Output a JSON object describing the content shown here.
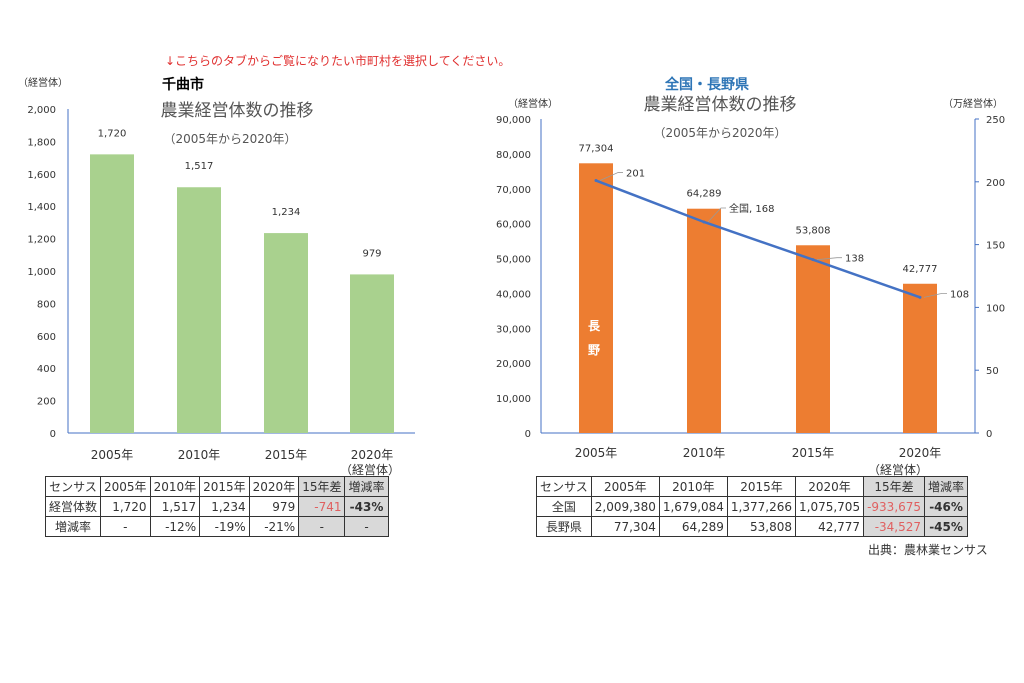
{
  "notice": "↓こちらのタブからご覧になりたい市町村を選択してください。",
  "colors": {
    "green_bar": "#a9d18e",
    "orange_bar": "#ed7d31",
    "line": "#4472c4",
    "notice": "#e03030",
    "title_blue": "#2e75b6"
  },
  "chart_data": [
    {
      "type": "bar",
      "region": "千曲市",
      "title": "農業経営体数の推移",
      "subtitle": "（2005年から2020年）",
      "ylabel": "（経営体）",
      "categories": [
        "2005年",
        "2010年",
        "2015年",
        "2020年"
      ],
      "values": [
        1720,
        1517,
        1234,
        979
      ],
      "data_labels": [
        "1,720",
        "1,517",
        "1,234",
        "979"
      ],
      "ylim": [
        0,
        2000
      ],
      "yticks": [
        "0",
        "200",
        "400",
        "600",
        "800",
        "1,000",
        "1,200",
        "1,400",
        "1,600",
        "1,800",
        "2,000"
      ],
      "grid": false,
      "unit_note": "（経営体）"
    },
    {
      "type": "bar+line",
      "region": "全国・長野県",
      "title": "農業経営体数の推移",
      "subtitle": "（2005年から2020年）",
      "ylabel": "（経営体）",
      "y2label": "（万経営体）",
      "categories": [
        "2005年",
        "2010年",
        "2015年",
        "2020年"
      ],
      "series": [
        {
          "name": "長野",
          "type": "bar",
          "axis": "left",
          "values": [
            77304,
            64289,
            53808,
            42777
          ],
          "data_labels": [
            "77,304",
            "64,289",
            "53,808",
            "42,777"
          ]
        },
        {
          "name": "全国",
          "type": "line",
          "axis": "right",
          "values": [
            201,
            168,
            138,
            108
          ],
          "data_labels": [
            "201",
            "全国, 168",
            "138",
            "108"
          ]
        }
      ],
      "bar_inner_label": [
        "長",
        "野"
      ],
      "ylim": [
        0,
        90000
      ],
      "y2lim": [
        0,
        250
      ],
      "yticks": [
        "0",
        "10,000",
        "20,000",
        "30,000",
        "40,000",
        "50,000",
        "60,000",
        "70,000",
        "80,000",
        "90,000"
      ],
      "y2ticks": [
        "0",
        "50",
        "100",
        "150",
        "200",
        "250"
      ],
      "grid": false,
      "unit_note": "（経営体）"
    }
  ],
  "table_left": {
    "header": [
      "センサス",
      "2005年",
      "2010年",
      "2015年",
      "2020年",
      "15年差",
      "増減率"
    ],
    "rows": [
      [
        "経営体数",
        "1,720",
        "1,517",
        "1,234",
        "979",
        "-741",
        "-43%"
      ],
      [
        "増減率",
        "-",
        "-12%",
        "-19%",
        "-21%",
        "-",
        "-"
      ]
    ]
  },
  "table_right": {
    "header": [
      "センサス",
      "2005年",
      "2010年",
      "2015年",
      "2020年",
      "15年差",
      "増減率"
    ],
    "rows": [
      [
        "全国",
        "2,009,380",
        "1,679,084",
        "1,377,266",
        "1,075,705",
        "-933,675",
        "-46%"
      ],
      [
        "長野県",
        "77,304",
        "64,289",
        "53,808",
        "42,777",
        "-34,527",
        "-45%"
      ]
    ]
  },
  "source": "出典：農林業センサス"
}
